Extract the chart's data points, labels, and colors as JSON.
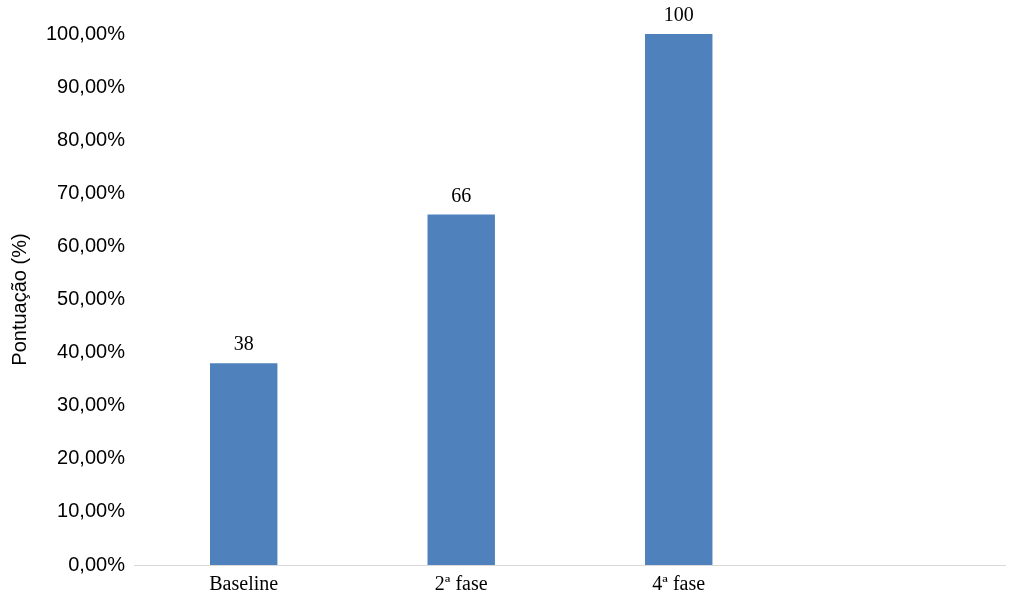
{
  "chart_data": {
    "type": "bar",
    "ylabel": "Pontuação (%)",
    "categories": [
      "Baseline",
      "2ª fase",
      "4ª fase",
      null
    ],
    "values": [
      38,
      66,
      100,
      null
    ],
    "color": "#4f81bd",
    "data_labels": true,
    "ylim": [
      0,
      100
    ],
    "yticks": [
      {
        "value": 0,
        "label": "0,00%"
      },
      {
        "value": 10,
        "label": "10,00%"
      },
      {
        "value": 20,
        "label": "20,00%"
      },
      {
        "value": 30,
        "label": "30,00%"
      },
      {
        "value": 40,
        "label": "40,00%"
      },
      {
        "value": 50,
        "label": "50,00%"
      },
      {
        "value": 60,
        "label": "60,00%"
      },
      {
        "value": 70,
        "label": "70,00%"
      },
      {
        "value": 80,
        "label": "80,00%"
      },
      {
        "value": 90,
        "label": "90,00%"
      },
      {
        "value": 100,
        "label": "100,00%"
      }
    ],
    "grid": false,
    "legend": false
  }
}
